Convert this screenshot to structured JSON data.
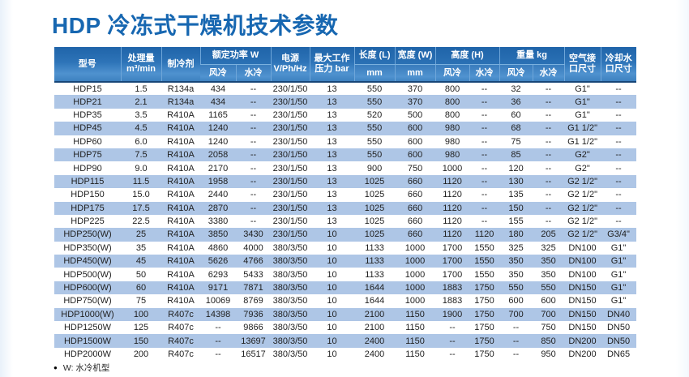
{
  "page": {
    "title": "HDP 冷冻式干燥机技术参数",
    "footnote_bullet": "●",
    "footnote": "W: 水冷机型"
  },
  "colors": {
    "title_blue": "#1767b1",
    "header_gradient_top": "#1f64a9",
    "header_gradient_bottom": "#4f92cf",
    "header_border_dark": "#174678",
    "row_stripe": "#aec6e6",
    "body_text": "#1f1f1f"
  },
  "table": {
    "header": {
      "model": "型号",
      "capacity_line1": "处理量",
      "capacity_line2": "m³/min",
      "refrigerant": "制冷剂",
      "rated_power": "额定功率 W",
      "air_cooled": "风冷",
      "water_cooled": "水冷",
      "power_line1": "电源",
      "power_line2": "V/Ph/Hz",
      "pressure_line1": "最大工作",
      "pressure_line2": "压力 bar",
      "length": "长度 (L)",
      "width_col": "宽度 (W)",
      "mm": "mm",
      "height": "高度 (H)",
      "weight": "重量 kg",
      "air_port_line1": "空气接",
      "air_port_line2": "口尺寸",
      "water_port_line1": "冷却水",
      "water_port_line2": "口尺寸"
    },
    "rows": [
      [
        "HDP15",
        "1.5",
        "R134a",
        "434",
        "--",
        "230/1/50",
        "13",
        "550",
        "370",
        "800",
        "--",
        "32",
        "--",
        "G1\"",
        "--"
      ],
      [
        "HDP21",
        "2.1",
        "R134a",
        "434",
        "--",
        "230/1/50",
        "13",
        "550",
        "370",
        "800",
        "--",
        "36",
        "--",
        "G1\"",
        "--"
      ],
      [
        "HDP35",
        "3.5",
        "R410A",
        "1165",
        "--",
        "230/1/50",
        "13",
        "520",
        "500",
        "800",
        "--",
        "60",
        "--",
        "G1\"",
        "--"
      ],
      [
        "HDP45",
        "4.5",
        "R410A",
        "1240",
        "--",
        "230/1/50",
        "13",
        "550",
        "600",
        "980",
        "--",
        "68",
        "--",
        "G1 1/2\"",
        "--"
      ],
      [
        "HDP60",
        "6.0",
        "R410A",
        "1240",
        "--",
        "230/1/50",
        "13",
        "550",
        "600",
        "980",
        "--",
        "75",
        "--",
        "G1 1/2\"",
        "--"
      ],
      [
        "HDP75",
        "7.5",
        "R410A",
        "2058",
        "--",
        "230/1/50",
        "13",
        "550",
        "600",
        "980",
        "--",
        "85",
        "--",
        "G2\"",
        "--"
      ],
      [
        "HDP90",
        "9.0",
        "R410A",
        "2170",
        "--",
        "230/1/50",
        "13",
        "900",
        "750",
        "1000",
        "--",
        "120",
        "--",
        "G2\"",
        "--"
      ],
      [
        "HDP115",
        "11.5",
        "R410A",
        "1958",
        "--",
        "230/1/50",
        "13",
        "1025",
        "660",
        "1120",
        "--",
        "130",
        "--",
        "G2 1/2\"",
        "--"
      ],
      [
        "HDP150",
        "15.0",
        "R410A",
        "2440",
        "--",
        "230/1/50",
        "13",
        "1025",
        "660",
        "1120",
        "--",
        "135",
        "--",
        "G2 1/2\"",
        "--"
      ],
      [
        "HDP175",
        "17.5",
        "R410A",
        "2870",
        "--",
        "230/1/50",
        "13",
        "1025",
        "660",
        "1120",
        "--",
        "150",
        "--",
        "G2 1/2\"",
        "--"
      ],
      [
        "HDP225",
        "22.5",
        "R410A",
        "3380",
        "--",
        "230/1/50",
        "13",
        "1025",
        "660",
        "1120",
        "--",
        "155",
        "--",
        "G2 1/2\"",
        "--"
      ],
      [
        "HDP250(W)",
        "25",
        "R410A",
        "3850",
        "3430",
        "230/1/50",
        "10",
        "1025",
        "660",
        "1120",
        "1120",
        "180",
        "205",
        "G2 1/2\"",
        "G3/4\""
      ],
      [
        "HDP350(W)",
        "35",
        "R410A",
        "4860",
        "4000",
        "380/3/50",
        "10",
        "1133",
        "1000",
        "1700",
        "1550",
        "325",
        "325",
        "DN100",
        "G1\""
      ],
      [
        "HDP450(W)",
        "45",
        "R410A",
        "5626",
        "4766",
        "380/3/50",
        "10",
        "1133",
        "1000",
        "1700",
        "1550",
        "350",
        "350",
        "DN100",
        "G1\""
      ],
      [
        "HDP500(W)",
        "50",
        "R410A",
        "6293",
        "5433",
        "380/3/50",
        "10",
        "1133",
        "1000",
        "1700",
        "1550",
        "350",
        "350",
        "DN100",
        "G1\""
      ],
      [
        "HDP600(W)",
        "60",
        "R410A",
        "9171",
        "7871",
        "380/3/50",
        "10",
        "1644",
        "1000",
        "1883",
        "1750",
        "550",
        "550",
        "DN150",
        "G1\""
      ],
      [
        "HDP750(W)",
        "75",
        "R410A",
        "10069",
        "8769",
        "380/3/50",
        "10",
        "1644",
        "1000",
        "1883",
        "1750",
        "600",
        "600",
        "DN150",
        "G1\""
      ],
      [
        "HDP1000(W)",
        "100",
        "R407c",
        "14398",
        "7936",
        "380/3/50",
        "10",
        "2100",
        "1150",
        "1900",
        "1750",
        "700",
        "700",
        "DN150",
        "DN40"
      ],
      [
        "HDP1250W",
        "125",
        "R407c",
        "--",
        "9866",
        "380/3/50",
        "10",
        "2100",
        "1150",
        "--",
        "1750",
        "--",
        "750",
        "DN150",
        "DN50"
      ],
      [
        "HDP1500W",
        "150",
        "R407c",
        "--",
        "13697",
        "380/3/50",
        "10",
        "2400",
        "1150",
        "--",
        "1750",
        "--",
        "850",
        "DN200",
        "DN50"
      ],
      [
        "HDP2000W",
        "200",
        "R407c",
        "--",
        "16517",
        "380/3/50",
        "10",
        "2400",
        "1150",
        "--",
        "1750",
        "--",
        "950",
        "DN200",
        "DN65"
      ]
    ]
  }
}
